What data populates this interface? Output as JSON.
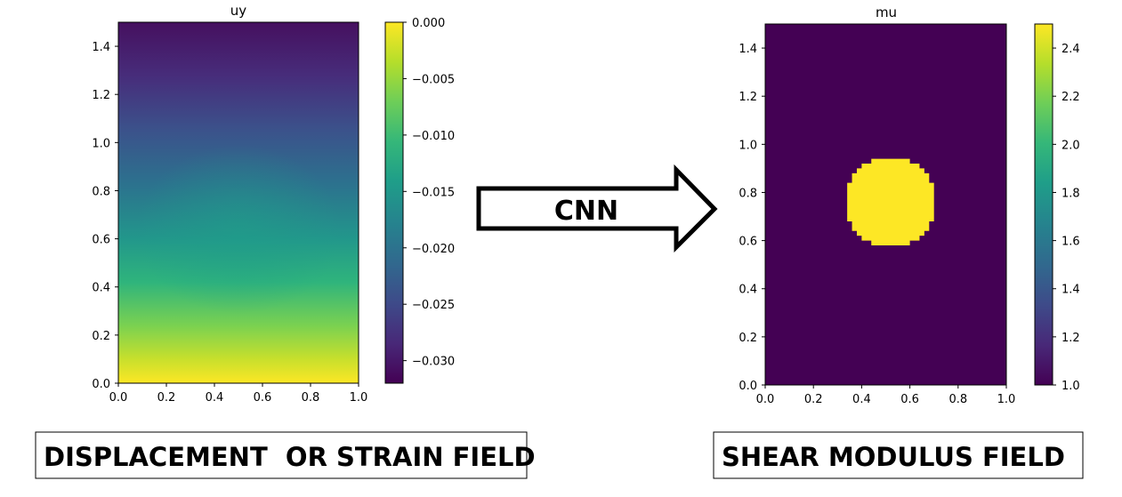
{
  "colors": {
    "viridis": [
      "#440154",
      "#482878",
      "#3e4a89",
      "#31688e",
      "#26828e",
      "#1f9e89",
      "#35b779",
      "#6ece58",
      "#b5de2b",
      "#fde725"
    ]
  },
  "arrow": {
    "label": "CNN"
  },
  "captions": {
    "left": "DISPLACEMENT  OR STRAIN FIELD",
    "right": "SHEAR MODULUS FIELD"
  },
  "chart_data": [
    {
      "type": "heatmap",
      "title": "uy",
      "field": "smooth vertical displacement, 0 at bottom edge, most negative at top edge, slight bulge around (0.5, 0.6)",
      "xlim": [
        0,
        1.0
      ],
      "ylim": [
        0,
        1.5
      ],
      "xticks": [
        "0.0",
        "0.2",
        "0.4",
        "0.6",
        "0.8",
        "1.0"
      ],
      "yticks": [
        "0.0",
        "0.2",
        "0.4",
        "0.6",
        "0.8",
        "1.0",
        "1.2",
        "1.4"
      ],
      "colorbar": {
        "colormap": "viridis",
        "min": -0.032,
        "max": 0.0,
        "ticks": [
          0.0,
          -0.005,
          -0.01,
          -0.015,
          -0.02,
          -0.025,
          -0.03
        ],
        "tick_labels": [
          "0.000",
          "−0.005",
          "−0.010",
          "−0.015",
          "−0.020",
          "−0.025",
          "−0.030"
        ]
      }
    },
    {
      "type": "heatmap",
      "title": "mu",
      "field": "constant background value 1.0 with a circular inclusion of value 2.5",
      "background_value": 1.0,
      "inclusion": {
        "center": [
          0.52,
          0.76
        ],
        "radius": 0.19,
        "value": 2.5
      },
      "xlim": [
        0,
        1.0
      ],
      "ylim": [
        0,
        1.5
      ],
      "xticks": [
        "0.0",
        "0.2",
        "0.4",
        "0.6",
        "0.8",
        "1.0"
      ],
      "yticks": [
        "0.0",
        "0.2",
        "0.4",
        "0.6",
        "0.8",
        "1.0",
        "1.2",
        "1.4"
      ],
      "colorbar": {
        "colormap": "viridis",
        "min": 1.0,
        "max": 2.5,
        "ticks": [
          1.0,
          1.2,
          1.4,
          1.6,
          1.8,
          2.0,
          2.2,
          2.4
        ],
        "tick_labels": [
          "1.0",
          "1.2",
          "1.4",
          "1.6",
          "1.8",
          "2.0",
          "2.2",
          "2.4"
        ]
      }
    }
  ]
}
